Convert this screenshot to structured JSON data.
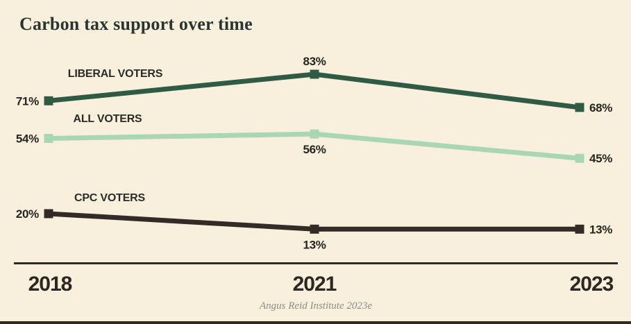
{
  "chart": {
    "title": "Carbon tax support over time",
    "source": "Angus Reid Institute 2023e"
  },
  "chart_data": {
    "type": "line",
    "title": "Carbon tax support over time",
    "x": [
      "2018",
      "2021",
      "2023"
    ],
    "unit": "%",
    "ylim": [
      0,
      100
    ],
    "grid": false,
    "legend": "inline-series-labels",
    "series": [
      {
        "name": "LIBERAL VOTERS",
        "values": [
          71,
          83,
          68
        ],
        "labels": [
          "71%",
          "83%",
          "68%"
        ],
        "color": "#2f5a43",
        "label_positions": [
          "left",
          "above",
          "right"
        ]
      },
      {
        "name": "ALL VOTERS",
        "values": [
          54,
          56,
          45
        ],
        "labels": [
          "54%",
          "56%",
          "45%"
        ],
        "color": "#a9d7b4",
        "label_positions": [
          "left",
          "below",
          "right"
        ]
      },
      {
        "name": "CPC VOTERS",
        "values": [
          20,
          13,
          13
        ],
        "labels": [
          "20%",
          "13%",
          "13%"
        ],
        "color": "#322b26",
        "label_positions": [
          "left",
          "below",
          "right"
        ]
      }
    ],
    "source": "Angus Reid Institute 2023e"
  },
  "colors": {
    "background": "#f8f0dd",
    "title_text": "#283531",
    "value_text": "#26241e",
    "year_text": "#2d2720",
    "series_label_text": "#2b2a24",
    "axis": "#2e2a24",
    "source_text": "#8e8b82",
    "bottom_bar": "#2f2924"
  }
}
